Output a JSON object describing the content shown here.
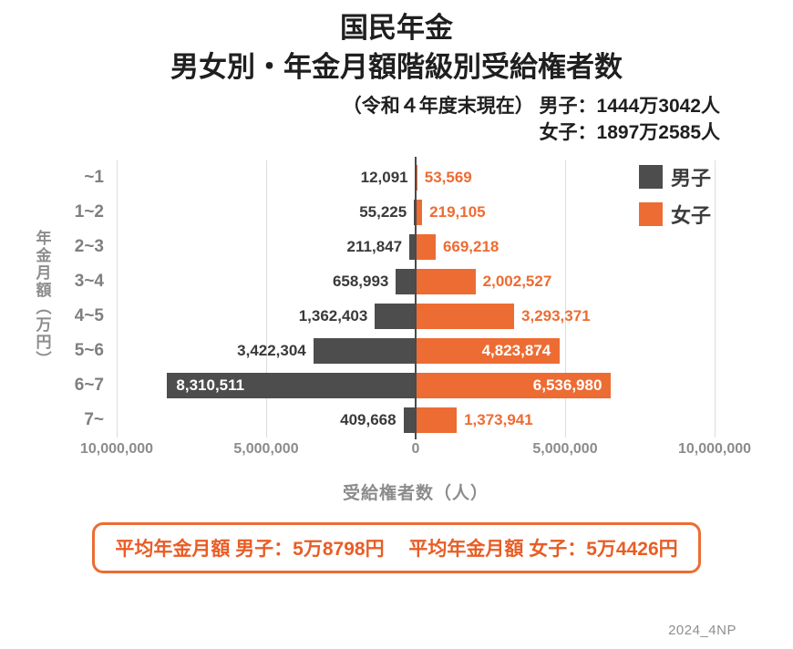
{
  "header": {
    "title_line1": "国民年金",
    "title_line2": "男女別・年金月額階級別受給権者数",
    "subtitle_line1": "（令和４年度末現在） 男子：1444万3042人",
    "subtitle_line2": "女子：1897万2585人"
  },
  "colors": {
    "male_bar": "#4d4d4d",
    "female_bar": "#ed6c33",
    "text_dark": "#3a3a3a",
    "text_gray": "#8c8c8c",
    "grid": "#dcdcdc",
    "accent_orange": "#e85d25"
  },
  "chart_data": {
    "type": "bar",
    "orientation": "diverging-horizontal",
    "title": "国民年金 男女別・年金月額階級別受給権者数",
    "categories": [
      "~1",
      "1~2",
      "2~3",
      "3~4",
      "4~5",
      "5~6",
      "6~7",
      "7~"
    ],
    "series": [
      {
        "name": "男子",
        "side": "left",
        "color": "#4d4d4d",
        "values": [
          12091,
          55225,
          211847,
          658993,
          1362403,
          3422304,
          8310511,
          409668
        ]
      },
      {
        "name": "女子",
        "side": "right",
        "color": "#ed6c33",
        "values": [
          53569,
          219105,
          669218,
          2002527,
          3293371,
          4823874,
          6536980,
          1373941
        ]
      }
    ],
    "xlabel": "受給権者数（人）",
    "ylabel": "年金月額（万円）",
    "x_ticks": [
      "10,000,000",
      "5,000,000",
      "0",
      "5,000,000",
      "10,000,000"
    ],
    "xmax": 10000000,
    "inside_label_threshold": 4000000,
    "grid": true,
    "legend_position": "top-right",
    "legend": [
      {
        "label": "男子",
        "color": "#4d4d4d"
      },
      {
        "label": "女子",
        "color": "#ed6c33"
      }
    ]
  },
  "footer": {
    "summary": "平均年金月額 男子：5万8798円　 平均年金月額 女子：5万4426円",
    "watermark": "2024_4NP"
  }
}
